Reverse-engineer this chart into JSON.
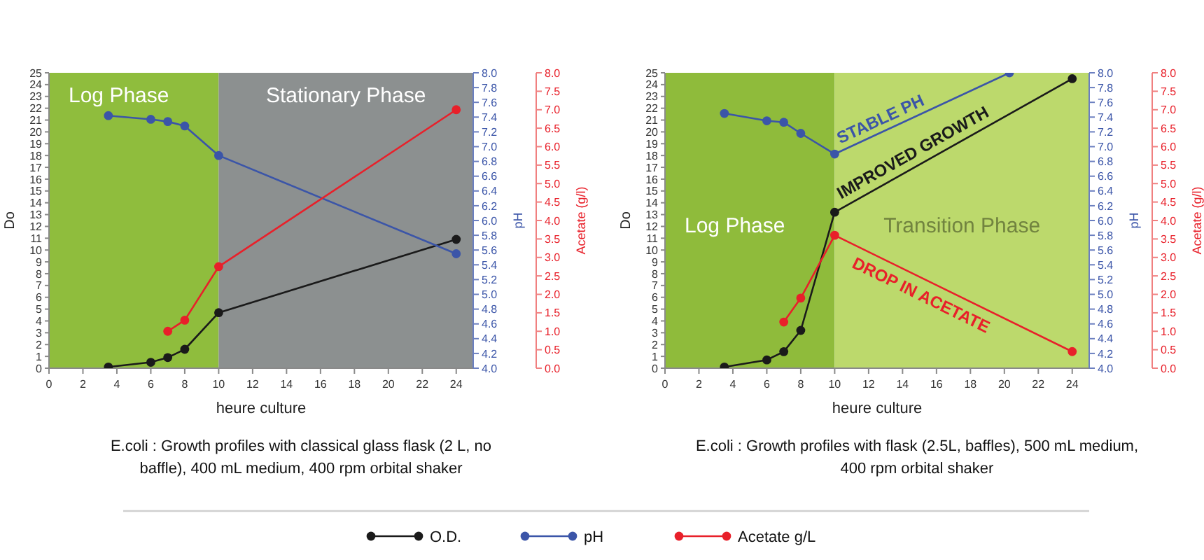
{
  "chart_data": [
    {
      "type": "line",
      "xlabel": "heure culture",
      "ylabel": "Do",
      "y2label": "pH",
      "y3label": "Acetate (g/l)",
      "xlim": [
        0,
        25
      ],
      "xticks": [
        0,
        2,
        4,
        6,
        8,
        10,
        12,
        14,
        16,
        18,
        20,
        22,
        24
      ],
      "ylim": [
        0,
        25
      ],
      "yticks": [
        0,
        1,
        2,
        3,
        4,
        5,
        6,
        7,
        8,
        9,
        10,
        11,
        12,
        13,
        14,
        15,
        16,
        17,
        18,
        19,
        20,
        21,
        22,
        23,
        24,
        25
      ],
      "y2lim": [
        4,
        8
      ],
      "y2ticks": [
        {
          "value": 4,
          "label": "4.0"
        },
        {
          "value": 4.2,
          "label": "4.2"
        },
        {
          "value": 4.4,
          "label": "4.4"
        },
        {
          "value": 4.6,
          "label": "4.6"
        },
        {
          "value": 4.8,
          "label": "4.8"
        },
        {
          "value": 5,
          "label": "5.0"
        },
        {
          "value": 5.2,
          "label": "5.2"
        },
        {
          "value": 5.4,
          "label": "5.4"
        },
        {
          "value": 5.6,
          "label": "5.6"
        },
        {
          "value": 5.8,
          "label": "5.8"
        },
        {
          "value": 6,
          "label": "6.0"
        },
        {
          "value": 6.2,
          "label": "6.2"
        },
        {
          "value": 6.4,
          "label": "6.4"
        },
        {
          "value": 6.6,
          "label": "6.6"
        },
        {
          "value": 6.8,
          "label": "6.8"
        },
        {
          "value": 7,
          "label": "7.0"
        },
        {
          "value": 7.2,
          "label": "7.2"
        },
        {
          "value": 7.4,
          "label": "7.4"
        },
        {
          "value": 7.6,
          "label": "7.6"
        },
        {
          "value": 7.8,
          "label": "7.8"
        },
        {
          "value": 8,
          "label": "8.0"
        }
      ],
      "y3lim": [
        0,
        8
      ],
      "y3ticks": [
        {
          "value": 0,
          "label": "0.0"
        },
        {
          "value": 0.5,
          "label": "0.5"
        },
        {
          "value": 1,
          "label": "1.0"
        },
        {
          "value": 1.5,
          "label": "1.5"
        },
        {
          "value": 2,
          "label": "2.0"
        },
        {
          "value": 2.5,
          "label": "2.5"
        },
        {
          "value": 3,
          "label": "3.0"
        },
        {
          "value": 3.5,
          "label": "3.5"
        },
        {
          "value": 4,
          "label": "4.0"
        },
        {
          "value": 4.5,
          "label": "4.5"
        },
        {
          "value": 5,
          "label": "5.0"
        },
        {
          "value": 5.5,
          "label": "5.5"
        },
        {
          "value": 6,
          "label": "6.0"
        },
        {
          "value": 6.5,
          "label": "6.5"
        },
        {
          "value": 7,
          "label": "7.0"
        },
        {
          "value": 7.5,
          "label": "7.5"
        },
        {
          "value": 8,
          "label": "8.0"
        }
      ],
      "marker": "circle",
      "legend": "bottom",
      "bands": [
        {
          "axis": "x",
          "from": 0,
          "to": 10,
          "label": "Log Phase",
          "color": "#8fbd3d"
        },
        {
          "axis": "x",
          "from": 10,
          "to": 25,
          "label": "Stationary Phase",
          "color": "#8c9090"
        }
      ],
      "series": [
        {
          "name": "O.D.",
          "color": "#1a1a1a",
          "x": [
            3.5,
            6,
            7,
            8,
            10,
            24
          ],
          "values": [
            0.1,
            0.5,
            0.9,
            1.6,
            4.7,
            10.9
          ]
        },
        {
          "name": "pH",
          "color": "#3b55a8",
          "axis": "y2",
          "x": [
            3.5,
            6,
            7,
            8,
            10,
            24
          ],
          "values": [
            7.42,
            7.37,
            7.34,
            7.28,
            6.88,
            5.55
          ]
        },
        {
          "name": "Acetate g/L",
          "color": "#e8202a",
          "axis": "y3",
          "x": [
            7,
            8,
            10,
            24
          ],
          "values": [
            1.0,
            1.3,
            2.75,
            7.0
          ]
        }
      ],
      "annotations": [
        "E.coli : Growth profiles with classical glass flask (2 L,  no baffle), 400 mL medium, 400 rpm orbital shaker"
      ]
    },
    {
      "type": "line",
      "xlabel": "heure culture",
      "ylabel": "Do",
      "y2label": "pH",
      "y3label": "Acetate (g/l)",
      "xlim": [
        0,
        25
      ],
      "xticks": [
        0,
        2,
        4,
        6,
        8,
        10,
        12,
        14,
        16,
        18,
        20,
        22,
        24
      ],
      "ylim": [
        0,
        25
      ],
      "yticks": [
        0,
        1,
        2,
        3,
        4,
        5,
        6,
        7,
        8,
        9,
        10,
        11,
        12,
        13,
        14,
        15,
        16,
        17,
        18,
        19,
        20,
        21,
        22,
        23,
        24,
        25
      ],
      "y2lim": [
        4,
        8
      ],
      "y2ticks": [
        {
          "value": 4,
          "label": "4.0"
        },
        {
          "value": 4.2,
          "label": "4.2"
        },
        {
          "value": 4.4,
          "label": "4.4"
        },
        {
          "value": 4.6,
          "label": "4.6"
        },
        {
          "value": 4.8,
          "label": "4.8"
        },
        {
          "value": 5,
          "label": "5.0"
        },
        {
          "value": 5.2,
          "label": "5.2"
        },
        {
          "value": 5.4,
          "label": "5.4"
        },
        {
          "value": 5.6,
          "label": "5.6"
        },
        {
          "value": 5.8,
          "label": "5.8"
        },
        {
          "value": 6,
          "label": "6.0"
        },
        {
          "value": 6.2,
          "label": "6.2"
        },
        {
          "value": 6.4,
          "label": "6.4"
        },
        {
          "value": 6.6,
          "label": "6.6"
        },
        {
          "value": 6.8,
          "label": "6.8"
        },
        {
          "value": 7,
          "label": "7.0"
        },
        {
          "value": 7.2,
          "label": "7.2"
        },
        {
          "value": 7.4,
          "label": "7.4"
        },
        {
          "value": 7.6,
          "label": "7.6"
        },
        {
          "value": 7.8,
          "label": "7.8"
        },
        {
          "value": 8,
          "label": "8.0"
        }
      ],
      "y3lim": [
        0,
        8
      ],
      "y3ticks": [
        {
          "value": 0,
          "label": "0.0"
        },
        {
          "value": 0.5,
          "label": "0.5"
        },
        {
          "value": 1,
          "label": "1.0"
        },
        {
          "value": 1.5,
          "label": "1.5"
        },
        {
          "value": 2,
          "label": "2.0"
        },
        {
          "value": 2.5,
          "label": "2.5"
        },
        {
          "value": 3,
          "label": "3.0"
        },
        {
          "value": 3.5,
          "label": "3.5"
        },
        {
          "value": 4,
          "label": "4.0"
        },
        {
          "value": 4.5,
          "label": "4.5"
        },
        {
          "value": 5,
          "label": "5.0"
        },
        {
          "value": 5.5,
          "label": "5.5"
        },
        {
          "value": 6,
          "label": "6.0"
        },
        {
          "value": 6.5,
          "label": "6.5"
        },
        {
          "value": 7,
          "label": "7.0"
        },
        {
          "value": 7.5,
          "label": "7.5"
        },
        {
          "value": 8,
          "label": "8.0"
        }
      ],
      "marker": "circle",
      "bands": [
        {
          "axis": "x",
          "from": 0,
          "to": 10,
          "label": "Log Phase",
          "color": "#8fbb3b"
        },
        {
          "axis": "x",
          "from": 10,
          "to": 25,
          "label": "Transition Phase",
          "color": "#bcd96c"
        }
      ],
      "series": [
        {
          "color": "#1a1a1a",
          "x": [
            3.5,
            6,
            7,
            8,
            10,
            24
          ],
          "values": [
            0.1,
            0.7,
            1.4,
            3.2,
            13.2,
            24.5
          ]
        },
        {
          "color": "#3b55a8",
          "axis": "y2",
          "x": [
            3.5,
            6,
            7,
            8,
            10,
            20.3
          ],
          "values": [
            7.45,
            7.35,
            7.33,
            7.18,
            6.9,
            8.0
          ]
        },
        {
          "color": "#e8202a",
          "axis": "y3",
          "x": [
            7,
            8,
            10,
            24
          ],
          "values": [
            1.25,
            1.9,
            3.6,
            0.45
          ]
        }
      ],
      "annotations": [
        "STABLE PH",
        "IMPROVED GROWTH",
        "DROP IN ACETATE",
        "E.coli : Growth profiles with flask (2.5L, baffles), 500 mL medium, 400 rpm orbital shaker"
      ]
    }
  ]
}
